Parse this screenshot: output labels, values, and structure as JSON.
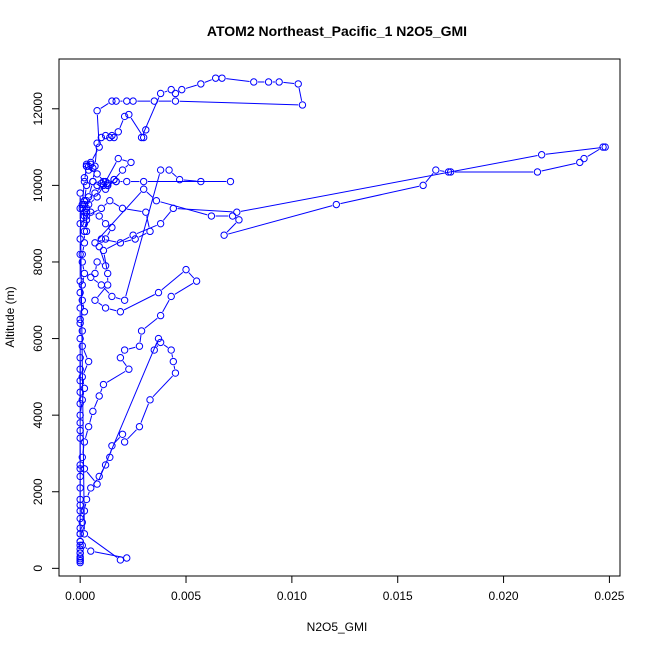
{
  "chart_data": {
    "type": "line",
    "title": "ATOM2 Northeast_Pacific_1 N2O5_GMI",
    "xlabel": "N2O5_GMI",
    "ylabel": "Altitude (m)",
    "xlim": [
      -0.001,
      0.0255
    ],
    "ylim": [
      -200,
      13300
    ],
    "xticks": [
      0.0,
      0.005,
      0.01,
      0.015,
      0.02,
      0.025
    ],
    "xtick_labels": [
      "0.000",
      "0.005",
      "0.010",
      "0.015",
      "0.020",
      "0.025"
    ],
    "yticks": [
      0,
      2000,
      4000,
      6000,
      8000,
      10000,
      12000
    ],
    "ytick_labels": [
      "0",
      "2000",
      "4000",
      "6000",
      "8000",
      "10000",
      "12000"
    ],
    "grid": false,
    "series_color": "#0000ff",
    "series": [
      {
        "marker": "open-circle",
        "x": [
          0.0,
          0.0,
          0.0,
          0.0,
          0.0,
          0.0,
          0.0,
          0.0,
          0.0,
          0.0,
          0.0,
          0.0,
          0.0,
          0.0,
          0.0,
          0.0,
          0.0,
          0.0,
          0.0,
          0.0,
          0.0001,
          0.0002,
          0.0001,
          0.0004,
          0.0001,
          0.0001,
          0.0,
          0.0002,
          0.0001,
          0.0001,
          0.0002,
          0.0001,
          0.0001,
          0.0002,
          0.0002,
          0.0003,
          0.0001,
          0.0002,
          0.0003,
          0.0002,
          0.0004,
          0.0003,
          0.0004,
          0.0006,
          0.0005,
          0.0003,
          0.0002,
          0.0001,
          0.0002,
          0.0003,
          0.0003,
          0.0004,
          0.0006,
          0.0007,
          0.0008,
          0.001,
          0.0012,
          0.0014,
          0.0015,
          0.0016,
          0.0018,
          0.0021,
          0.0023,
          0.003,
          0.0031,
          0.0029,
          0.0038,
          0.0043,
          0.0045,
          0.0048,
          0.0057,
          0.0064,
          0.0067,
          0.0082,
          0.0089,
          0.0094,
          0.0103,
          0.0105,
          0.0045,
          0.0035,
          0.0025,
          0.0022,
          0.0017,
          0.0015,
          0.0008,
          0.0009,
          0.0005,
          0.0003,
          0.0008,
          0.0013,
          0.0016,
          0.0017,
          0.0013,
          0.001,
          0.0008,
          0.0006,
          0.0012,
          0.002,
          0.0024,
          0.0018,
          0.0011,
          0.0007,
          0.0003,
          0.0002,
          0.0002,
          0.0003,
          0.001,
          0.0014,
          0.002,
          0.0031,
          0.0033,
          0.0026,
          0.0019,
          0.001,
          0.0009,
          0.0012,
          0.0008,
          0.0007,
          0.0005,
          0.001,
          0.0015,
          0.0021,
          0.0038,
          0.0042,
          0.0047,
          0.0057,
          0.0071,
          0.003,
          0.0022,
          0.0017,
          0.0016,
          0.0013,
          0.0011,
          0.0012,
          0.0008,
          0.0004,
          0.0003,
          0.0003,
          0.0002,
          0.0005,
          0.0009,
          0.0012,
          0.0015,
          0.0012,
          0.0007,
          0.003,
          0.0036,
          0.0062,
          0.0072,
          0.0075,
          0.0068,
          0.0121,
          0.0162,
          0.0168,
          0.0174,
          0.0175,
          0.0216,
          0.0236,
          0.0238,
          0.0247,
          0.0248,
          0.0218,
          0.0074,
          0.0044,
          0.0038,
          0.0025,
          0.0011,
          0.0013,
          0.0013,
          0.0007,
          0.0012,
          0.0019,
          0.0037,
          0.005,
          0.0055,
          0.0043,
          0.0038,
          0.0029,
          0.0028,
          0.0021,
          0.0019,
          0.0023,
          0.0011,
          0.0009,
          0.0006,
          0.0004,
          0.0002,
          0.0001,
          0.0002,
          0.0008,
          0.0037,
          0.0035,
          0.0038,
          0.0043,
          0.0044,
          0.0045,
          0.0033,
          0.0028,
          0.0021,
          0.002,
          0.0015,
          0.0014,
          0.0012,
          0.0009,
          0.0005,
          0.0003,
          0.0002,
          0.0001,
          0.0,
          0.0,
          0.0,
          0.0,
          0.0,
          0.0,
          0.0,
          0.0,
          0.0,
          0.0,
          0.0,
          0.0,
          0.0,
          0.0,
          0.0,
          0.0,
          0.0,
          0.0002,
          0.0019,
          0.0022,
          0.0005,
          0.0001,
          0.0,
          0.0,
          0.0,
          0.0
        ],
        "y": [
          150,
          200,
          250,
          400,
          600,
          700,
          900,
          1050,
          1300,
          1500,
          1650,
          1800,
          2100,
          2400,
          2600,
          2700,
          3400,
          3600,
          3800,
          4000,
          4400,
          4700,
          5000,
          5400,
          5800,
          6200,
          6500,
          6700,
          7000,
          7400,
          7700,
          8000,
          8200,
          8500,
          8800,
          9100,
          9400,
          9600,
          10000,
          10200,
          10400,
          10550,
          10500,
          10450,
          10550,
          10500,
          10100,
          9500,
          9000,
          8800,
          9300,
          9700,
          10100,
          10500,
          11100,
          11250,
          11300,
          11250,
          11300,
          11250,
          11400,
          11800,
          11850,
          11250,
          11450,
          11250,
          12400,
          12500,
          12400,
          12500,
          12650,
          12800,
          12800,
          12700,
          12700,
          12700,
          12650,
          12100,
          12200,
          12200,
          12200,
          12200,
          12200,
          12200,
          11950,
          11000,
          10600,
          10500,
          10300,
          10000,
          10150,
          10100,
          10000,
          10050,
          10000,
          10100,
          9900,
          10400,
          10600,
          10700,
          10000,
          9800,
          9600,
          9500,
          9300,
          9200,
          9400,
          9600,
          9400,
          9300,
          8800,
          8600,
          8500,
          8600,
          8400,
          7900,
          8000,
          7700,
          7600,
          7400,
          7100,
          7000,
          10400,
          10400,
          10150,
          10100,
          10100,
          10100,
          10100,
          10100,
          10150,
          10050,
          10100,
          10100,
          9700,
          9500,
          9400,
          9300,
          9200,
          9300,
          9200,
          9000,
          8900,
          8600,
          8500,
          9900,
          9600,
          9200,
          9200,
          9100,
          8700,
          9500,
          10000,
          10400,
          10350,
          10350,
          10350,
          10600,
          10700,
          11000,
          11000,
          10800,
          9300,
          9400,
          9000,
          8700,
          8300,
          7700,
          7400,
          7000,
          6800,
          6700,
          7200,
          7800,
          7500,
          7100,
          6600,
          6200,
          5800,
          5700,
          5500,
          5200,
          4800,
          4500,
          4100,
          3700,
          3300,
          2900,
          2600,
          2200,
          6000,
          5700,
          5900,
          5700,
          5400,
          5100,
          4400,
          3700,
          3300,
          3500,
          3200,
          2900,
          2700,
          2400,
          2100,
          1800,
          1500,
          1200,
          900,
          700,
          5500,
          5200,
          4900,
          4600,
          4300,
          6000,
          6400,
          6800,
          7200,
          7500,
          8200,
          8600,
          9000,
          9400,
          9800,
          900,
          220,
          270,
          450,
          600,
          500,
          400,
          300,
          200
        ]
      }
    ]
  }
}
